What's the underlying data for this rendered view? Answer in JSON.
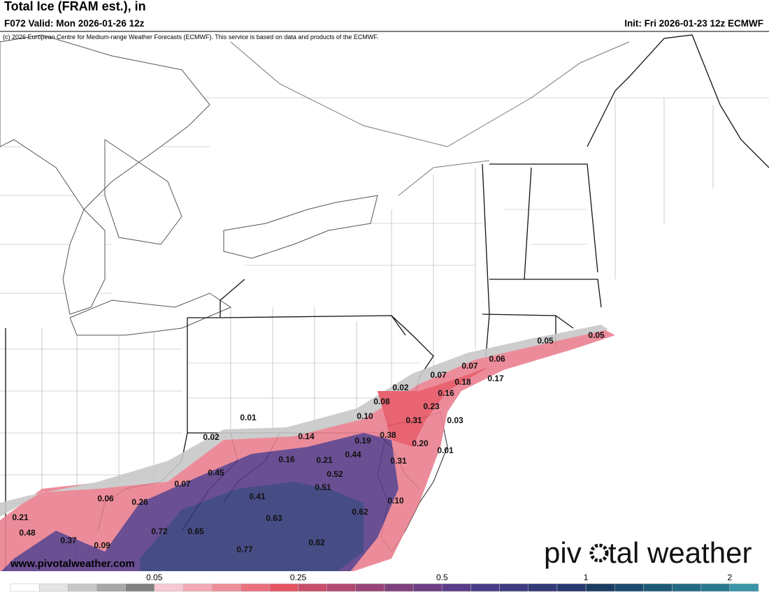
{
  "header": {
    "title": "Total Ice (FRAM est.), in",
    "valid": "F072 Valid: Mon 2026-01-26 12z",
    "init": "Init: Fri 2026-01-23 12z ECMWF",
    "copyright": "(c) 2026 European Centre for Medium-range Weather Forecasts (ECMWF). This service is based on data and products of the ECMWF."
  },
  "map": {
    "point_labels": [
      "0.05",
      "0.05",
      "0.06",
      "0.07",
      "0.07",
      "0.18",
      "0.17",
      "0.02",
      "0.16",
      "0.08",
      "0.23",
      "0.10",
      "0.31",
      "0.03",
      "0.01",
      "0.02",
      "0.14",
      "0.19",
      "0.38",
      "0.20",
      "0.01",
      "0.16",
      "0.21",
      "0.44",
      "0.31",
      "0.45",
      "0.52",
      "0.07",
      "0.51",
      "0.06",
      "0.26",
      "0.41",
      "0.10",
      "0.62",
      "0.21",
      "0.63",
      "0.48",
      "0.72",
      "0.65",
      "0.37",
      "0.09",
      "0.82",
      "0.77"
    ]
  },
  "footer": {
    "website": "www.pivotalweather.com",
    "logo_left": "piv",
    "logo_right": "tal weather"
  },
  "colorbar": {
    "colors": [
      "#ffffff",
      "#e4e4e4",
      "#c8c8c8",
      "#a6a6a6",
      "#808080",
      "#f6c8d2",
      "#f2aab6",
      "#ee8e9a",
      "#ea707e",
      "#e65462",
      "#c84e6a",
      "#b04a72",
      "#984678",
      "#80427e",
      "#6c3e84",
      "#5a3c88",
      "#4a3c88",
      "#3e3c80",
      "#323a78",
      "#283870",
      "#1c3c64",
      "#1a4a6e",
      "#1e5a78",
      "#226a84",
      "#287a90",
      "#3a94a8"
    ],
    "ticks": [
      0.05,
      0.25,
      0.5,
      1,
      2
    ]
  }
}
